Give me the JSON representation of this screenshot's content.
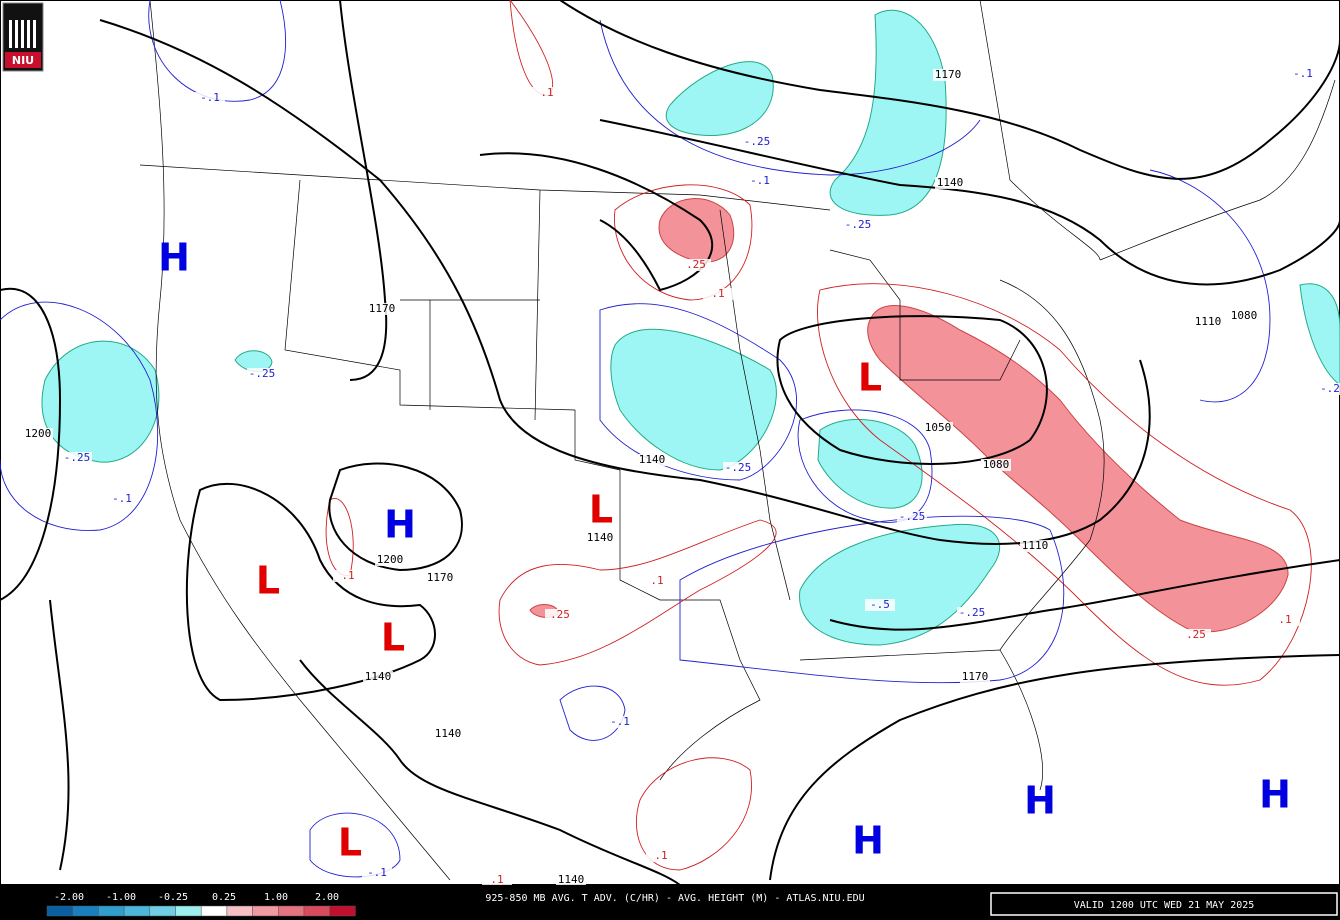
{
  "logo": "NIU",
  "pressure_centers": [
    "H",
    "H",
    "H",
    "H",
    "H",
    "L",
    "L",
    "L",
    "L",
    "L"
  ],
  "height_labels": [
    "1170",
    "1140",
    "1170",
    "1200",
    "1200",
    "1170",
    "1140",
    "1140",
    "1140",
    "1140",
    "1110",
    "1080",
    "1050",
    "1080",
    "1110",
    "1170",
    "1140"
  ],
  "cold_adv_labels": [
    "-.1",
    "-.25",
    "-.1",
    "-.25",
    "-.25",
    "-.25",
    "-.1",
    "-.25",
    "-.25",
    "-.5",
    "-.25",
    "-.1",
    "-.1",
    "-.1",
    "-.2"
  ],
  "warm_adv_labels": [
    ".1",
    ".25",
    ".1",
    ".1",
    ".25",
    ".1",
    ".25",
    ".1",
    ".1",
    ".1"
  ],
  "colorbar_labels": [
    "-2.00",
    "-1.00",
    "-0.25",
    "0.25",
    "1.00",
    "2.00"
  ],
  "title": "925-850 MB AVG. T ADV. (C/HR) - AVG. HEIGHT (M) - ATLAS.NIU.EDU",
  "valid_time": "VALID 1200 UTC WED 21 MAY 2025"
}
